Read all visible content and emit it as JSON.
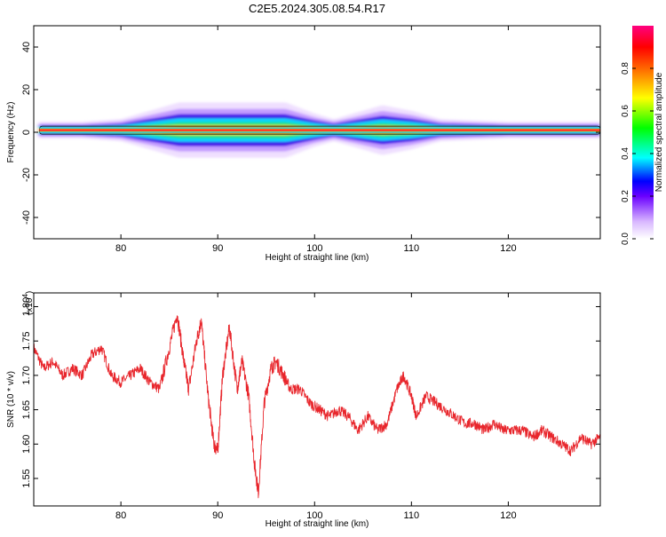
{
  "title": "C2E5.2024.305.08.54.R17",
  "chart_data": [
    {
      "type": "heatmap",
      "title": "C2E5.2024.305.08.54.R17",
      "xlabel": "Height of straight line (km)",
      "ylabel": "Frequency (Hz)",
      "xlim": [
        71,
        129.5
      ],
      "ylim": [
        -50,
        50
      ],
      "x_ticks": [
        80,
        90,
        100,
        110,
        120
      ],
      "y_ticks": [
        -40,
        -20,
        0,
        20,
        40
      ],
      "grid": false,
      "carrier_freq_hz": 1,
      "intensity_profile": [
        {
          "x": 71.5,
          "spread": 1.5
        },
        {
          "x": 76,
          "spread": 1.5
        },
        {
          "x": 80,
          "spread": 2
        },
        {
          "x": 83,
          "spread": 3.5
        },
        {
          "x": 86,
          "spread": 5
        },
        {
          "x": 90,
          "spread": 5
        },
        {
          "x": 93,
          "spread": 5
        },
        {
          "x": 97,
          "spread": 5
        },
        {
          "x": 100,
          "spread": 3
        },
        {
          "x": 102,
          "spread": 2
        },
        {
          "x": 104,
          "spread": 3
        },
        {
          "x": 107,
          "spread": 4.5
        },
        {
          "x": 110,
          "spread": 3.5
        },
        {
          "x": 113,
          "spread": 2
        },
        {
          "x": 120,
          "spread": 1.5
        },
        {
          "x": 129.5,
          "spread": 1.5
        }
      ],
      "colorbar": {
        "label": "Normalized spectral amplitude",
        "ticks": [
          "0.0",
          "0.2",
          "0.4",
          "0.6",
          "0.8"
        ],
        "range": [
          0,
          1
        ]
      }
    },
    {
      "type": "line",
      "xlabel": "Height of straight line (km)",
      "ylabel": "SNR (10 * v/v)",
      "scale_label_prefix": "(x10",
      "scale_label_exp": "4",
      "scale_label_suffix": ")",
      "xlim": [
        71,
        129.5
      ],
      "ylim": [
        1.51,
        1.82
      ],
      "x_ticks": [
        80,
        90,
        100,
        110,
        120
      ],
      "y_ticks": [
        "1.55",
        "1.60",
        "1.65",
        "1.70",
        "1.75",
        "1.80"
      ],
      "series": [
        {
          "color": "#e8262c",
          "points": [
            [
              71,
              1.74
            ],
            [
              72,
              1.71
            ],
            [
              73,
              1.72
            ],
            [
              74,
              1.7
            ],
            [
              75,
              1.71
            ],
            [
              76,
              1.7
            ],
            [
              77,
              1.73
            ],
            [
              78,
              1.74
            ],
            [
              79,
              1.7
            ],
            [
              80,
              1.69
            ],
            [
              81,
              1.7
            ],
            [
              82,
              1.71
            ],
            [
              83,
              1.69
            ],
            [
              84,
              1.68
            ],
            [
              85,
              1.74
            ],
            [
              85.8,
              1.79
            ],
            [
              86.5,
              1.72
            ],
            [
              87,
              1.68
            ],
            [
              87.8,
              1.75
            ],
            [
              88.3,
              1.78
            ],
            [
              89,
              1.67
            ],
            [
              89.6,
              1.6
            ],
            [
              90,
              1.59
            ],
            [
              90.5,
              1.7
            ],
            [
              91.2,
              1.77
            ],
            [
              92,
              1.68
            ],
            [
              92.5,
              1.72
            ],
            [
              93.2,
              1.67
            ],
            [
              93.8,
              1.57
            ],
            [
              94.2,
              1.53
            ],
            [
              94.8,
              1.66
            ],
            [
              95.5,
              1.71
            ],
            [
              96,
              1.72
            ],
            [
              96.8,
              1.7
            ],
            [
              97.5,
              1.68
            ],
            [
              98.5,
              1.68
            ],
            [
              99.5,
              1.66
            ],
            [
              100.5,
              1.65
            ],
            [
              101.5,
              1.64
            ],
            [
              102.5,
              1.65
            ],
            [
              103.5,
              1.64
            ],
            [
              104.5,
              1.62
            ],
            [
              105.5,
              1.64
            ],
            [
              106.5,
              1.62
            ],
            [
              107.5,
              1.63
            ],
            [
              108.5,
              1.68
            ],
            [
              109.2,
              1.7
            ],
            [
              110,
              1.67
            ],
            [
              110.5,
              1.64
            ],
            [
              111.5,
              1.67
            ],
            [
              112.5,
              1.66
            ],
            [
              113.5,
              1.65
            ],
            [
              114.5,
              1.64
            ],
            [
              115.5,
              1.63
            ],
            [
              116.5,
              1.63
            ],
            [
              117.5,
              1.62
            ],
            [
              118.5,
              1.63
            ],
            [
              119.5,
              1.62
            ],
            [
              120.5,
              1.62
            ],
            [
              121.5,
              1.62
            ],
            [
              122.5,
              1.61
            ],
            [
              123.5,
              1.62
            ],
            [
              124.5,
              1.61
            ],
            [
              125.5,
              1.6
            ],
            [
              126.5,
              1.59
            ],
            [
              127.5,
              1.61
            ],
            [
              128.5,
              1.6
            ],
            [
              129.5,
              1.61
            ]
          ]
        }
      ]
    }
  ]
}
